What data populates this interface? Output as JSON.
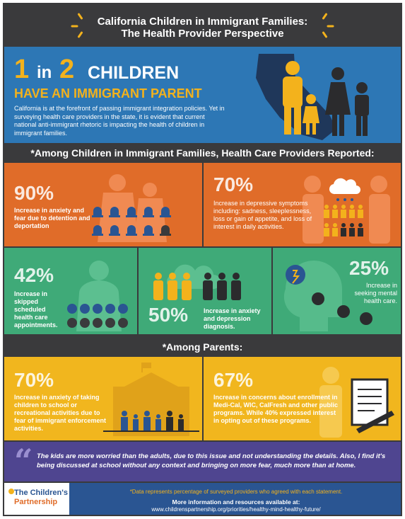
{
  "header": {
    "title_line1": "California Children in Immigrant Families:",
    "title_line2": "The Health Provider Perspective"
  },
  "hero": {
    "num1": "1",
    "in": "in",
    "num2": "2",
    "children": "CHILDREN",
    "subtitle": "HAVE AN IMMIGRANT PARENT",
    "body": "California is at the forefront of passing immigrant integration policies. Yet in surveying health care providers in the state, it is evident that current national anti-immigrant rhetoric is impacting the health of children in immigrant families."
  },
  "section1": {
    "heading": "*Among Children in Immigrant Families, Health Care Providers Reported:"
  },
  "stats_children": [
    {
      "percent": "90%",
      "description": "Increase in anxiety and fear due to detention and deportation"
    },
    {
      "percent": "70%",
      "description": "Increase in depressive symptoms including: sadness, sleeplessness, loss or gain of appetite, and loss of interest in daily activities."
    },
    {
      "percent": "42%",
      "description": "Increase in skipped scheduled health care appointments."
    },
    {
      "percent": "50%",
      "description": "Increase in anxiety and depression diagnosis."
    },
    {
      "percent": "25%",
      "description": "Increase in seeking mental health care."
    }
  ],
  "section2": {
    "heading": "*Among Parents:"
  },
  "stats_parents": [
    {
      "percent": "70%",
      "description": "Increase in anxiety of taking children to school or recreational activities due to fear of immigrant enforcement activities."
    },
    {
      "percent": "67%",
      "description": "Increase in concerns about enrollment in Medi-Cal, WIC, CalFresh and other public programs. While 40% expressed interest in opting out of these programs."
    }
  ],
  "quote": {
    "text": "The kids are more worried than the adults, due to this issue and not understanding the details. Also, I find it's being discussed at school without any context and bringing on more fear, much more than at home."
  },
  "footer": {
    "logo_line1": "The Children's",
    "logo_line2": "Partnership",
    "note": "*Data represents percentage of surveyed providers who agreed with each statement.",
    "more": "More information and resources available at:",
    "url": "www.childrenspartnership.org/priorities/healthy-mind-healthy-future/"
  },
  "colors": {
    "dark": "#3a3a3c",
    "blue": "#2d77b5",
    "yellow": "#f3b21c",
    "orange": "#e06c29",
    "green": "#3faa78",
    "purple": "#4f4590",
    "navy": "#2a5592"
  }
}
